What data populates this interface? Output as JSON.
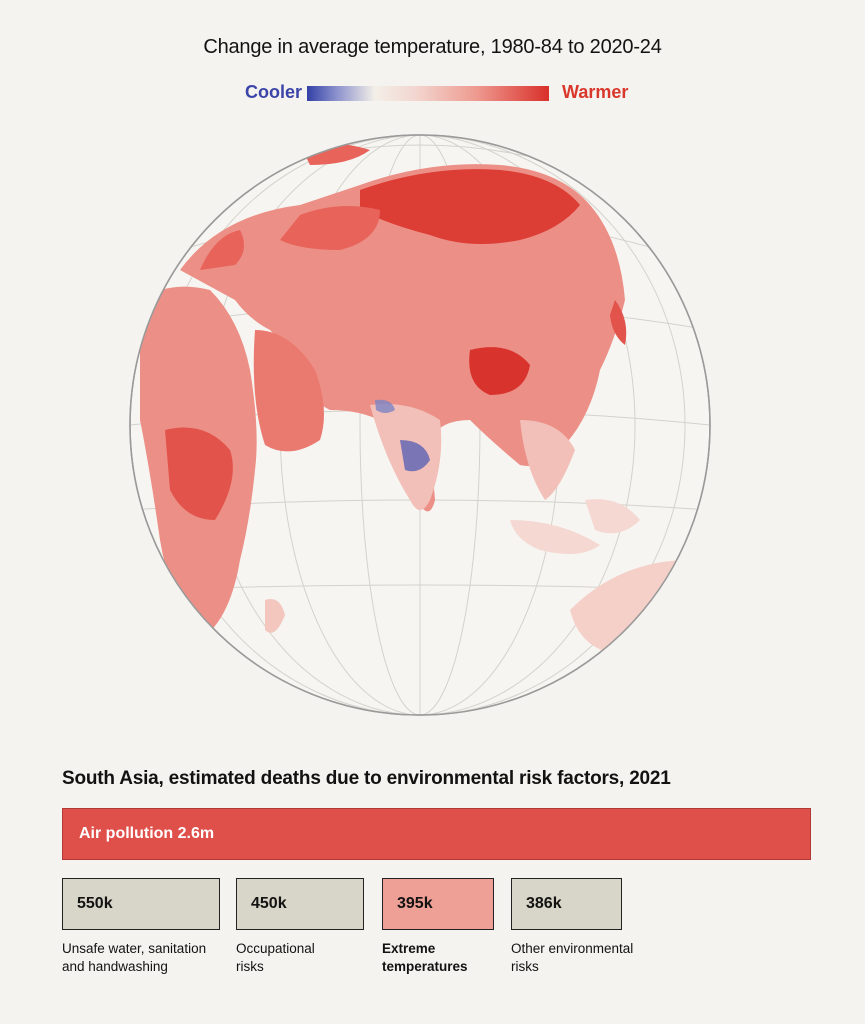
{
  "map": {
    "title": "Change in average temperature, 1980-84 to 2020-24",
    "legend": {
      "cooler_label": "Cooler",
      "warmer_label": "Warmer"
    }
  },
  "chart_data": {
    "type": "bar",
    "title": "South Asia, estimated deaths due to environmental risk factors, 2021",
    "categories": [
      "Air pollution",
      "Unsafe water, sanitation and handwashing",
      "Occupational risks",
      "Extreme temperatures",
      "Other environmental risks"
    ],
    "values": [
      2600000,
      550000,
      450000,
      395000,
      386000
    ],
    "value_labels": [
      "2.6m",
      "550k",
      "450k",
      "395k",
      "386k"
    ],
    "highlight": "Extreme temperatures",
    "label_lines": [
      [
        "Unsafe water, sanitation",
        "and handwashing"
      ],
      [
        "Occupational",
        "risks"
      ],
      [
        "Extreme",
        "temperatures"
      ],
      [
        "Other environmental",
        "risks"
      ]
    ]
  },
  "colors": {
    "background": "#f5f3ef",
    "warm": "#e0504a",
    "cool": "#3b44a8",
    "neutral_box": "#d8d6c9",
    "highlight_box": "#eea096"
  }
}
